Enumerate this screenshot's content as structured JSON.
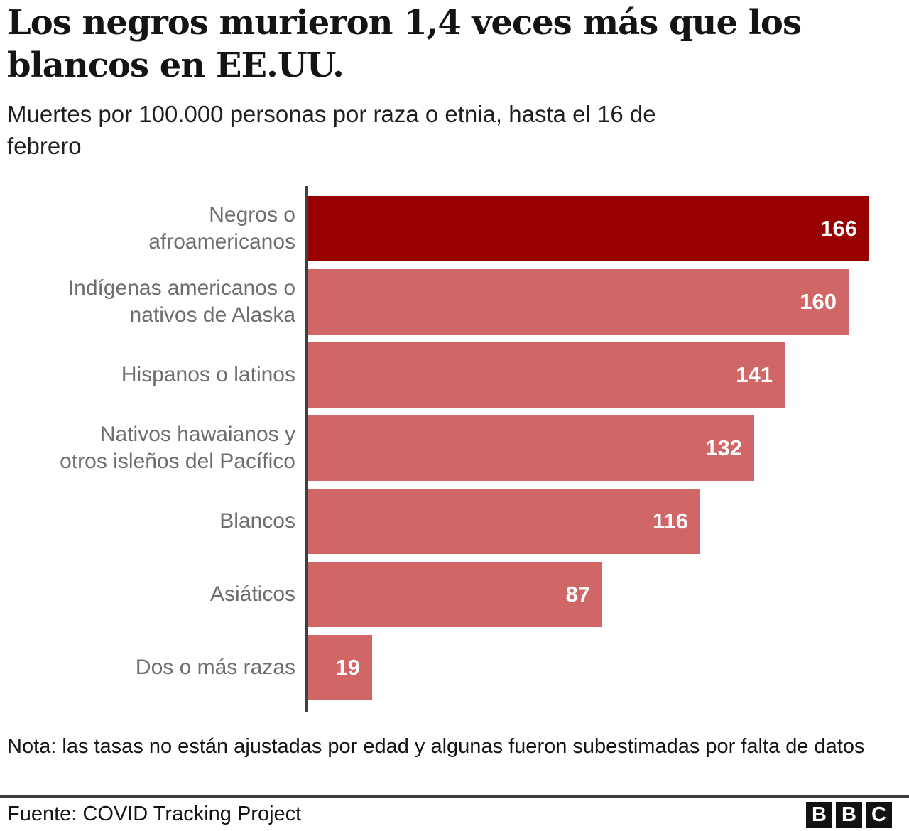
{
  "header": {
    "title": "Los negros murieron 1,4 veces más que los\nblancos en EE.UU.",
    "subtitle": "Muertes por 100.000 personas por raza o etnia, hasta el 16 de\nfebrero"
  },
  "chart_data": {
    "type": "bar",
    "orientation": "horizontal",
    "title": "Los negros murieron 1,4 veces más que los blancos en EE.UU.",
    "subtitle": "Muertes por 100.000 personas por raza o etnia, hasta el 16 de febrero",
    "categories": [
      "Negros o afroamericanos",
      "Indígenas americanos o nativos de Alaska",
      "Hispanos o latinos",
      "Nativos hawaianos y otros isleños del Pacífico",
      "Blancos",
      "Asiáticos",
      "Dos o más razas"
    ],
    "category_display": [
      "Negros o\nafroamericanos",
      "Indígenas americanos o\nnativos de Alaska",
      "Hispanos o latinos",
      "Nativos hawaianos y\notros isleños del Pacífico",
      "Blancos",
      "Asiáticos",
      "Dos o más razas"
    ],
    "values": [
      166,
      160,
      141,
      132,
      116,
      87,
      19
    ],
    "value_labels_inside_bars": true,
    "highlight_index": 0,
    "xlim": [
      0,
      178
    ],
    "grid": false,
    "legend": false
  },
  "colors": {
    "highlight_bar": "#990000",
    "bar": "#d16666",
    "value_text": "#ffffff",
    "axis": "#404040",
    "label_text": "#6e6e6e"
  },
  "note": "Nota: las tasas no están ajustadas por edad y algunas fueron subestimadas por falta de datos",
  "footer": {
    "source": "Fuente: COVID Tracking Project",
    "logo_letters": [
      "B",
      "B",
      "C"
    ]
  }
}
